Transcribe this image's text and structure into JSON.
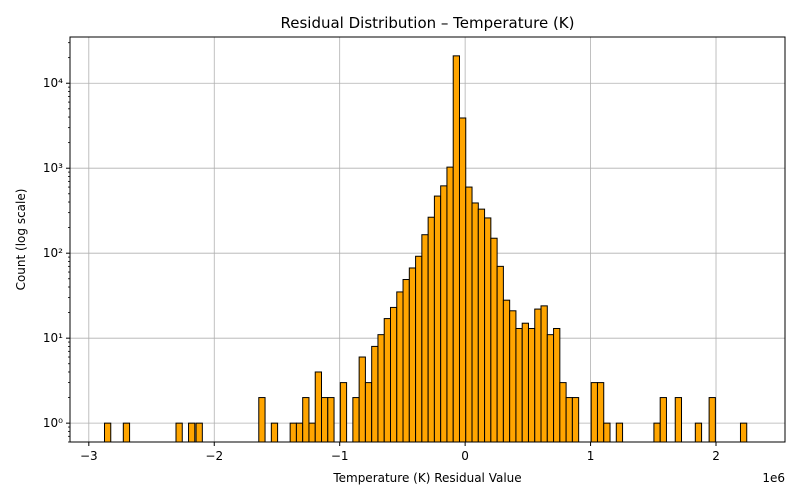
{
  "chart_data": {
    "type": "bar",
    "title": "Residual Distribution – Temperature (K)",
    "xlabel": "Temperature (K) Residual Value",
    "ylabel": "Count (log scale)",
    "x_offset_label": "1e6",
    "yscale": "log",
    "xlim": [
      -3150000,
      2550000
    ],
    "ylim": [
      0.6,
      35000
    ],
    "x_ticks": [
      -3,
      -2,
      -1,
      0,
      1,
      2
    ],
    "x_tick_labels": [
      "−3",
      "−2",
      "−1",
      "0",
      "1",
      "2"
    ],
    "y_ticks": [
      1,
      10,
      100,
      1000,
      10000
    ],
    "y_tick_labels": [
      "10⁰",
      "10¹",
      "10²",
      "10³",
      "10⁴"
    ],
    "grid": true,
    "bar_color": "#FFA500",
    "edge_color": "#000000",
    "bin_width": 50000,
    "bins": [
      {
        "x": -2850000,
        "count": 1
      },
      {
        "x": -2700000,
        "count": 1
      },
      {
        "x": -2280000,
        "count": 1
      },
      {
        "x": -2180000,
        "count": 1
      },
      {
        "x": -2120000,
        "count": 1
      },
      {
        "x": -1620000,
        "count": 2
      },
      {
        "x": -1520000,
        "count": 1
      },
      {
        "x": -1370000,
        "count": 1
      },
      {
        "x": -1320000,
        "count": 1
      },
      {
        "x": -1270000,
        "count": 2
      },
      {
        "x": -1220000,
        "count": 1
      },
      {
        "x": -1170000,
        "count": 4
      },
      {
        "x": -1120000,
        "count": 2
      },
      {
        "x": -1070000,
        "count": 2
      },
      {
        "x": -970000,
        "count": 3
      },
      {
        "x": -870000,
        "count": 2
      },
      {
        "x": -820000,
        "count": 6
      },
      {
        "x": -770000,
        "count": 3
      },
      {
        "x": -720000,
        "count": 8
      },
      {
        "x": -670000,
        "count": 11
      },
      {
        "x": -620000,
        "count": 17
      },
      {
        "x": -570000,
        "count": 23
      },
      {
        "x": -520000,
        "count": 35
      },
      {
        "x": -470000,
        "count": 49
      },
      {
        "x": -420000,
        "count": 67
      },
      {
        "x": -370000,
        "count": 92
      },
      {
        "x": -320000,
        "count": 165
      },
      {
        "x": -270000,
        "count": 265
      },
      {
        "x": -220000,
        "count": 470
      },
      {
        "x": -170000,
        "count": 620
      },
      {
        "x": -120000,
        "count": 1030
      },
      {
        "x": -70000,
        "count": 21000
      },
      {
        "x": -20000,
        "count": 3900
      },
      {
        "x": 30000,
        "count": 600
      },
      {
        "x": 80000,
        "count": 390
      },
      {
        "x": 130000,
        "count": 330
      },
      {
        "x": 180000,
        "count": 260
      },
      {
        "x": 230000,
        "count": 150
      },
      {
        "x": 280000,
        "count": 70
      },
      {
        "x": 330000,
        "count": 28
      },
      {
        "x": 380000,
        "count": 21
      },
      {
        "x": 430000,
        "count": 13
      },
      {
        "x": 480000,
        "count": 15
      },
      {
        "x": 530000,
        "count": 13
      },
      {
        "x": 580000,
        "count": 22
      },
      {
        "x": 630000,
        "count": 24
      },
      {
        "x": 680000,
        "count": 11
      },
      {
        "x": 730000,
        "count": 13
      },
      {
        "x": 780000,
        "count": 3
      },
      {
        "x": 830000,
        "count": 2
      },
      {
        "x": 880000,
        "count": 2
      },
      {
        "x": 1030000,
        "count": 3
      },
      {
        "x": 1080000,
        "count": 3
      },
      {
        "x": 1130000,
        "count": 1
      },
      {
        "x": 1230000,
        "count": 1
      },
      {
        "x": 1530000,
        "count": 1
      },
      {
        "x": 1580000,
        "count": 2
      },
      {
        "x": 1700000,
        "count": 2
      },
      {
        "x": 1860000,
        "count": 1
      },
      {
        "x": 1970000,
        "count": 2
      },
      {
        "x": 2220000,
        "count": 1
      }
    ]
  }
}
